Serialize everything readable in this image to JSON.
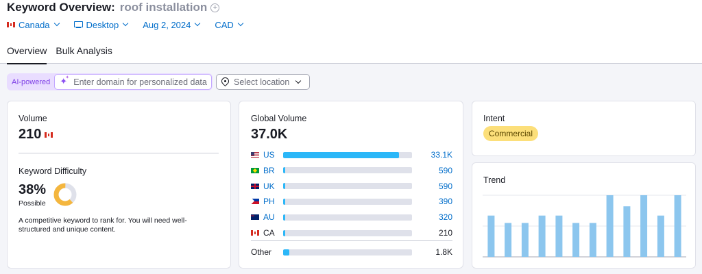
{
  "header": {
    "title": "Keyword Overview:",
    "keyword": "roof installation",
    "add_symbol": "+"
  },
  "filters": {
    "country": "Canada",
    "device": "Desktop",
    "date": "Aug 2, 2024",
    "currency": "CAD"
  },
  "tabs": [
    {
      "label": "Overview",
      "active": true
    },
    {
      "label": "Bulk Analysis",
      "active": false
    }
  ],
  "personalize": {
    "badge": "AI-powered",
    "domain_placeholder": "Enter domain for personalized data",
    "location_placeholder": "Select location"
  },
  "volume": {
    "label": "Volume",
    "value": "210"
  },
  "difficulty": {
    "label": "Keyword Difficulty",
    "value": "38%",
    "level": "Possible",
    "percent": 38,
    "color": "#f4b63e",
    "description": "A competitive keyword to rank for. You will need well-structured and unique content."
  },
  "global_volume": {
    "label": "Global Volume",
    "value": "37.0K",
    "countries": [
      {
        "code": "US",
        "value": "33.1K",
        "share": 0.9,
        "flag": "us-flag-icon",
        "link": true
      },
      {
        "code": "BR",
        "value": "590",
        "share": 0.016,
        "flag": "br-flag-icon",
        "link": true
      },
      {
        "code": "UK",
        "value": "590",
        "share": 0.016,
        "flag": "uk-flag-icon",
        "link": true
      },
      {
        "code": "PH",
        "value": "390",
        "share": 0.011,
        "flag": "ph-flag-icon",
        "link": true
      },
      {
        "code": "AU",
        "value": "320",
        "share": 0.009,
        "flag": "au-flag-icon",
        "link": true
      },
      {
        "code": "CA",
        "value": "210",
        "share": 0.006,
        "flag": "ca-flag-icon",
        "link": false
      }
    ],
    "other": {
      "code": "Other",
      "value": "1.8K",
      "share": 0.049
    }
  },
  "intent": {
    "label": "Intent",
    "value": "Commercial"
  },
  "trend": {
    "label": "Trend",
    "chart_data": {
      "type": "bar",
      "categories": [
        "",
        "",
        "",
        "",
        "",
        "",
        "",
        "",
        "",
        "",
        "",
        ""
      ],
      "values": [
        0.67,
        0.55,
        0.55,
        0.67,
        0.67,
        0.55,
        0.55,
        1.0,
        0.82,
        1.0,
        0.67,
        1.0
      ],
      "ylim": [
        0,
        1
      ],
      "grid": true,
      "color": "#8cc6ee"
    }
  }
}
